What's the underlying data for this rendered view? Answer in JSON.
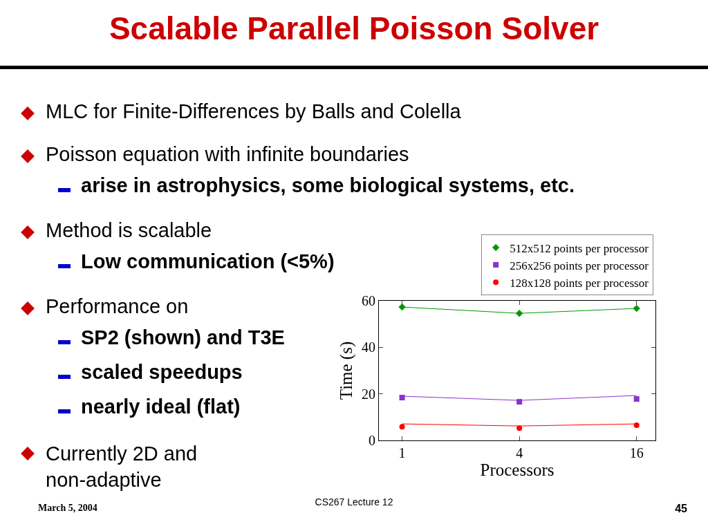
{
  "chart_data": {
    "type": "scatter",
    "title": "Scalable Parallel Poisson Solver",
    "xlabel": "Processors",
    "ylabel": "Time (s)",
    "x": [
      1,
      4,
      16
    ],
    "log": "x",
    "xlim": [
      0.76,
      20
    ],
    "xticks": [
      1,
      4,
      16
    ],
    "ylim": [
      0,
      60
    ],
    "yticks": [
      0,
      20,
      40,
      60
    ],
    "grid": false,
    "legend": "top right",
    "series": [
      {
        "name": "512x512 points per processor",
        "type": "scatter",
        "marker": "diamond",
        "color": "#009900",
        "values": [
          57.3,
          54.6,
          56.7
        ]
      },
      {
        "name": "256x256 points per processor",
        "type": "scatter",
        "marker": "square",
        "color": "#8833cc",
        "values": [
          18.4,
          16.6,
          17.8
        ]
      },
      {
        "name": "128x128 points per processor",
        "type": "scatter",
        "marker": "circle",
        "color": "#ff0000",
        "values": [
          5.9,
          5.3,
          6.5
        ]
      },
      {
        "type": "line",
        "marker": "none",
        "color": "#009900",
        "values": [
          57.3,
          54.6,
          56.7
        ]
      },
      {
        "type": "line",
        "marker": "none",
        "color": "#8833cc",
        "values": [
          19.0,
          17.2,
          19.3
        ]
      },
      {
        "type": "line",
        "marker": "none",
        "color": "#ff0000",
        "values": [
          7.1,
          6.2,
          7.1
        ]
      }
    ],
    "annotations": [
      "MLC for Finite-Differences by Balls and Colella",
      "Poisson equation with infinite boundaries",
      "arise in astrophysics, some biological systems, etc.",
      "Method is scalable",
      "Low communication (<5%)",
      "Performance on",
      "SP2 (shown) and T3E",
      "scaled speedups",
      "nearly ideal (flat)",
      "Currently 2D and non-adaptive",
      "March 5, 2004",
      "CS267 Lecture 12",
      "45"
    ]
  }
}
